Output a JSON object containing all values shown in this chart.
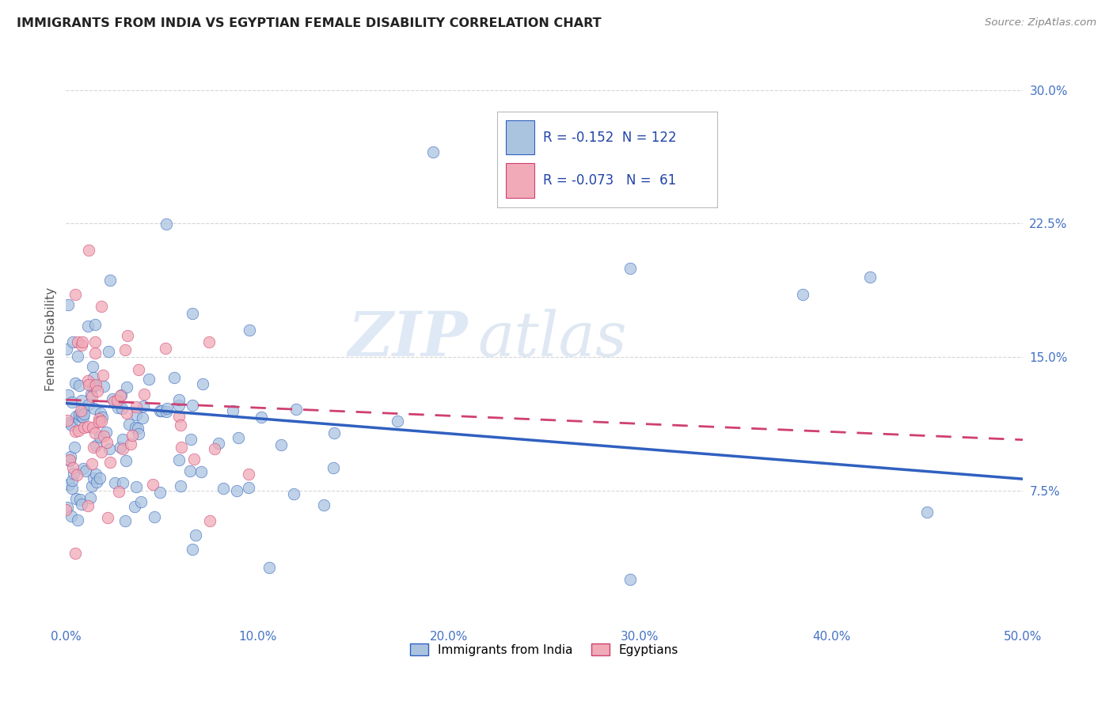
{
  "title": "IMMIGRANTS FROM INDIA VS EGYPTIAN FEMALE DISABILITY CORRELATION CHART",
  "source": "Source: ZipAtlas.com",
  "ylabel": "Female Disability",
  "xlim": [
    0.0,
    0.5
  ],
  "ylim": [
    0.0,
    0.32
  ],
  "xticks": [
    0.0,
    0.1,
    0.2,
    0.3,
    0.4,
    0.5
  ],
  "xticklabels": [
    "0.0%",
    "10.0%",
    "20.0%",
    "30.0%",
    "40.0%",
    "50.0%"
  ],
  "yticks": [
    0.075,
    0.15,
    0.225,
    0.3
  ],
  "yticklabels": [
    "7.5%",
    "15.0%",
    "22.5%",
    "30.0%"
  ],
  "legend_r_india": "-0.152",
  "legend_n_india": "122",
  "legend_r_egypt": "-0.073",
  "legend_n_egypt": "61",
  "color_india": "#aac4e0",
  "color_egypt": "#f0aab8",
  "color_india_line": "#3060c0",
  "color_egypt_line": "#d04070",
  "watermark_zip": "ZIP",
  "watermark_atlas": "atlas",
  "grid_color": "#cccccc",
  "title_color": "#222222",
  "source_color": "#888888",
  "tick_color": "#4472c4",
  "ylabel_color": "#555555"
}
